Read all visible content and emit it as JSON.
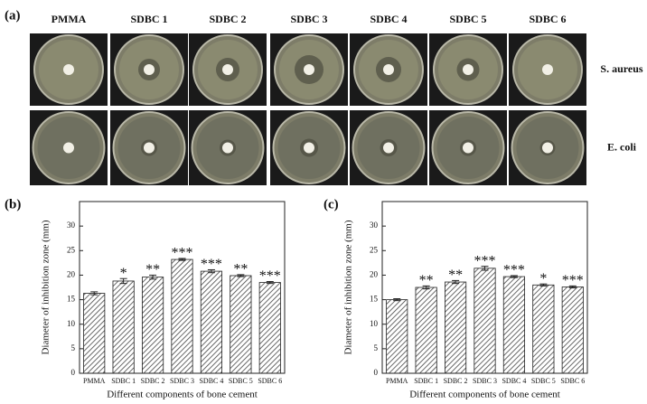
{
  "panel_a": {
    "label": "(a)",
    "columns": [
      "PMMA",
      "SDBC 1",
      "SDBC 2",
      "SDBC 3",
      "SDBC 4",
      "SDBC 5",
      "SDBC 6"
    ],
    "rows": [
      "S. aureus",
      "E. coli"
    ]
  },
  "chart_data": [
    {
      "type": "bar",
      "panel": "(b)",
      "xlabel": "Different components of bone cement",
      "ylabel": "Diameter of inhibition zone (mm)",
      "categories": [
        "PMMA",
        "SDBC 1",
        "SDBC 2",
        "SDBC 3",
        "SDBC 4",
        "SDBC 5",
        "SDBC 6"
      ],
      "values": [
        16.3,
        18.8,
        19.6,
        23.2,
        20.8,
        19.9,
        18.5
      ],
      "errors": [
        0.3,
        0.5,
        0.4,
        0.2,
        0.3,
        0.2,
        0.2
      ],
      "color": "#444444",
      "ylim": [
        0,
        35
      ],
      "yticks": [
        0,
        5,
        10,
        15,
        20,
        25,
        30
      ],
      "annotations": [
        {
          "x": "SDBC 1",
          "text": "*"
        },
        {
          "x": "SDBC 2",
          "text": "**"
        },
        {
          "x": "SDBC 3",
          "text": "***"
        },
        {
          "x": "SDBC 4",
          "text": "***"
        },
        {
          "x": "SDBC 5",
          "text": "**"
        },
        {
          "x": "SDBC 6",
          "text": "***"
        }
      ]
    },
    {
      "type": "bar",
      "panel": "(c)",
      "xlabel": "Different components of bone cement",
      "ylabel": "Diameter of inhibition zone (mm)",
      "categories": [
        "PMMA",
        "SDBC 1",
        "SDBC 2",
        "SDBC 3",
        "SDBC 4",
        "SDBC 5",
        "SDBC 6"
      ],
      "values": [
        15.0,
        17.5,
        18.6,
        21.4,
        19.7,
        18.0,
        17.6
      ],
      "errors": [
        0.2,
        0.3,
        0.3,
        0.4,
        0.2,
        0.2,
        0.2
      ],
      "color": "#444444",
      "ylim": [
        0,
        35
      ],
      "yticks": [
        0,
        5,
        10,
        15,
        20,
        25,
        30
      ],
      "annotations": [
        {
          "x": "SDBC 1",
          "text": "**"
        },
        {
          "x": "SDBC 2",
          "text": "**"
        },
        {
          "x": "SDBC 3",
          "text": "***"
        },
        {
          "x": "SDBC 4",
          "text": "***"
        },
        {
          "x": "SDBC 5",
          "text": "*"
        },
        {
          "x": "SDBC 6",
          "text": "***"
        }
      ]
    }
  ]
}
